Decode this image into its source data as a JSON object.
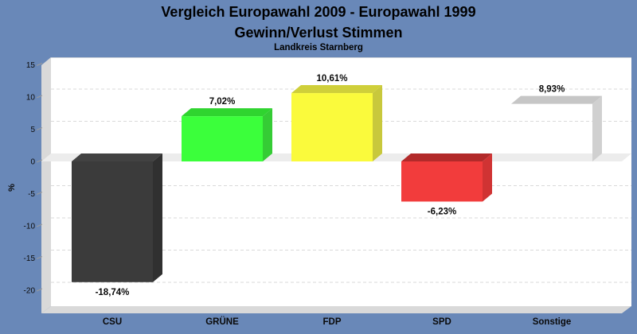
{
  "window": {
    "background": "#6988B8"
  },
  "header": {
    "title_line1": "Vergleich Europawahl 2009 - Europawahl 1999",
    "title_line2": "Gewinn/Verlust Stimmen",
    "subtitle": "Landkreis Starnberg"
  },
  "chart_data": {
    "type": "bar",
    "style": "3d-block-bars",
    "title": "Vergleich Europawahl 2009 - Europawahl 1999",
    "subtitle": "Gewinn/Verlust Stimmen",
    "caption": "Landkreis Starnberg",
    "categories": [
      "CSU",
      "GRÜNE",
      "FDP",
      "SPD",
      "Sonstige"
    ],
    "values": [
      -18.74,
      7.02,
      10.61,
      -6.23,
      8.93
    ],
    "value_labels": [
      "-18,74%",
      "7,02%",
      "10,61%",
      "-6,23%",
      "8,93%"
    ],
    "xlabel": "",
    "ylabel": "%",
    "yticks": [
      15,
      10,
      5,
      0,
      -5,
      -10,
      -15,
      -20
    ],
    "ylim": [
      -22,
      16
    ],
    "grid": "horizontal-dashed",
    "legend": "none",
    "bar_face_colors": [
      "#3B3B3B",
      "#3BFF3B",
      "#FAFA3C",
      "#F23C3C",
      "#FFFFFF"
    ],
    "bar_top_colors": [
      "#424242",
      "#2FD42F",
      "#CFCF3A",
      "#B22A2A",
      "#C6C6C6"
    ],
    "bar_side_colors": [
      "#303030",
      "#35CC35",
      "#C8C83C",
      "#D03333",
      "#D0D0D0"
    ],
    "transparent_front": [
      false,
      false,
      false,
      false,
      true
    ],
    "plot_background": "#FFFFFF",
    "wall_color": "#D9D9D9",
    "zero_plane_color": "#ECECEC",
    "gridline_color": "#D9D9D9",
    "tick_color": "#9A9A9A",
    "text_color": "#0A0A0A"
  }
}
